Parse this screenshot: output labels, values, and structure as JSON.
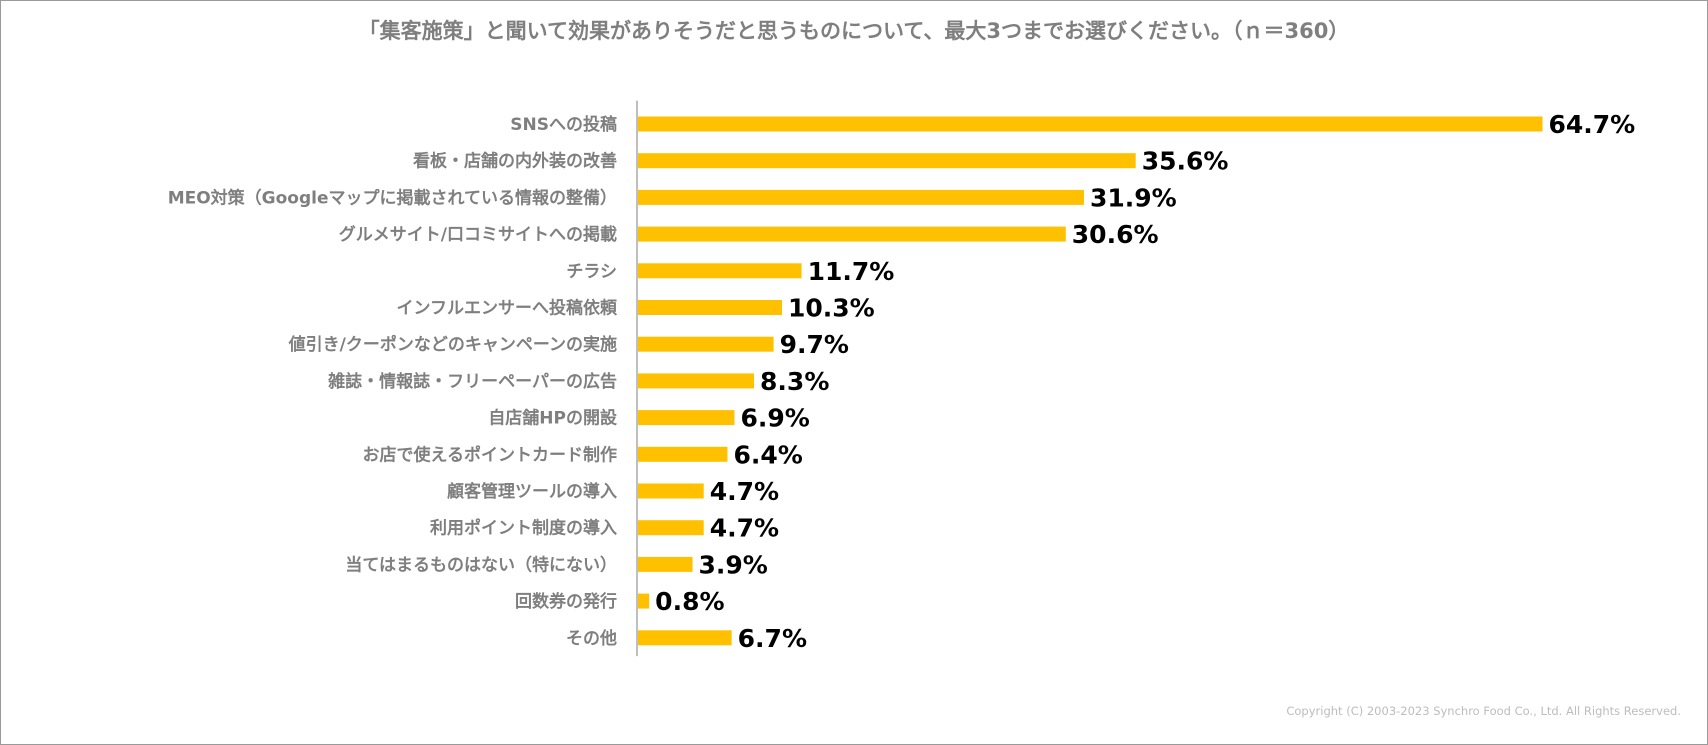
{
  "chart_data": {
    "type": "bar",
    "orientation": "horizontal",
    "title": "「集客施策」と聞いて効果がありそうだと思うものについて、最大3つまでお選びください。（ｎ＝360）",
    "xlabel": "",
    "ylabel": "",
    "unit": "%",
    "xlim": [
      0,
      70
    ],
    "grid": false,
    "legend": "none",
    "categories": [
      "SNSへの投稿",
      "看板・店舗の内外装の改善",
      "MEO対策（Googleマップに掲載されている情報の整備）",
      "グルメサイト/口コミサイトへの掲載",
      "チラシ",
      "インフルエンサーへ投稿依頼",
      "値引き/クーポンなどのキャンペーンの実施",
      "雑誌・情報誌・フリーペーパーの広告",
      "自店舗HPの開設",
      "お店で使えるポイントカード制作",
      "顧客管理ツールの導入",
      "利用ポイント制度の導入",
      "当てはまるものはない（特にない）",
      "回数券の発行",
      "その他"
    ],
    "values": [
      64.7,
      35.6,
      31.9,
      30.6,
      11.7,
      10.3,
      9.7,
      8.3,
      6.9,
      6.4,
      4.7,
      4.7,
      3.9,
      0.8,
      6.7
    ],
    "value_labels": [
      "64.7%",
      "35.6%",
      "31.9%",
      "30.6%",
      "11.7%",
      "10.3%",
      "9.7%",
      "8.3%",
      "6.9%",
      "6.4%",
      "4.7%",
      "4.7%",
      "3.9%",
      "0.8%",
      "6.7%"
    ]
  },
  "footer": {
    "copyright": "Copyright (C) 2003-2023   Synchro Food Co., Ltd. All Rights Reserved."
  },
  "colors": {
    "bar": "#FFC000",
    "axis": "#7f7f7f",
    "category_text": "#7f7f7f",
    "value_text": "#000000",
    "title_text": "#7f7f7f"
  }
}
